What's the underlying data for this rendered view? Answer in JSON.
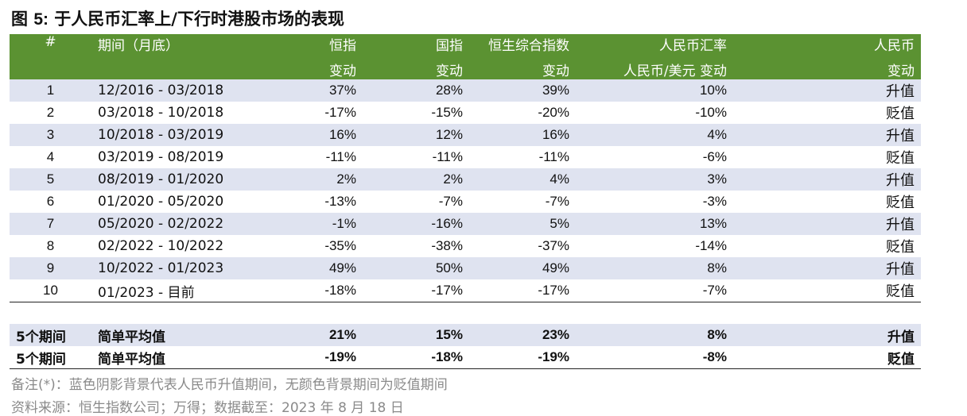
{
  "title": {
    "prefix": "图 ",
    "figno": "5:",
    "text": " 于人民币汇率上/下行时港股市场的表现"
  },
  "header": {
    "row1": [
      "#",
      "期间（月底）",
      "恒指",
      "国指",
      "恒生综合指数",
      "人民币汇率",
      "人民币"
    ],
    "row2": [
      "",
      "",
      "变动",
      "变动",
      "变动",
      "人民币/美元 变动",
      "变动"
    ]
  },
  "rows": [
    {
      "num": "1",
      "period": "12/2016 - 03/2018",
      "hsi": "37%",
      "hscei": "28%",
      "hsci": "39%",
      "fx": "10%",
      "dir": "升值"
    },
    {
      "num": "2",
      "period": "03/2018 - 10/2018",
      "hsi": "-17%",
      "hscei": "-15%",
      "hsci": "-20%",
      "fx": "-10%",
      "dir": "贬值"
    },
    {
      "num": "3",
      "period": "10/2018 - 03/2019",
      "hsi": "16%",
      "hscei": "12%",
      "hsci": "16%",
      "fx": "4%",
      "dir": "升值"
    },
    {
      "num": "4",
      "period": "03/2019 - 08/2019",
      "hsi": "-11%",
      "hscei": "-11%",
      "hsci": "-11%",
      "fx": "-6%",
      "dir": "贬值"
    },
    {
      "num": "5",
      "period": "08/2019 - 01/2020",
      "hsi": "2%",
      "hscei": "2%",
      "hsci": "4%",
      "fx": "3%",
      "dir": "升值"
    },
    {
      "num": "6",
      "period": "01/2020 - 05/2020",
      "hsi": "-13%",
      "hscei": "-7%",
      "hsci": "-7%",
      "fx": "-3%",
      "dir": "贬值"
    },
    {
      "num": "7",
      "period": "05/2020 - 02/2022",
      "hsi": "-1%",
      "hscei": "-16%",
      "hsci": "5%",
      "fx": "13%",
      "dir": "升值"
    },
    {
      "num": "8",
      "period": "02/2022 - 10/2022",
      "hsi": "-35%",
      "hscei": "-38%",
      "hsci": "-37%",
      "fx": "-14%",
      "dir": "贬值"
    },
    {
      "num": "9",
      "period": "10/2022 - 01/2023",
      "hsi": "49%",
      "hscei": "50%",
      "hsci": "49%",
      "fx": "8%",
      "dir": "升值"
    },
    {
      "num": "10",
      "period": "01/2023 - 目前",
      "hsi": "-18%",
      "hscei": "-17%",
      "hsci": "-17%",
      "fx": "-7%",
      "dir": "贬值"
    }
  ],
  "summary": [
    {
      "label": "5个期间",
      "method": "简单平均值",
      "hsi": "21%",
      "hscei": "15%",
      "hsci": "23%",
      "fx": "8%",
      "dir": "升值"
    },
    {
      "label": "5个期间",
      "method": "简单平均值",
      "hsi": "-19%",
      "hscei": "-18%",
      "hsci": "-19%",
      "fx": "-8%",
      "dir": "贬值"
    }
  ],
  "notes": {
    "note1": "备注(*)：蓝色阴影背景代表人民币升值期间，无颜色背景期间为贬值期间",
    "note2": "资料来源：恒生指数公司；万得；数据截至：2023 年 8 月 18 日"
  },
  "colors": {
    "header_bg": "#5b9232",
    "shade_bg": "#dfe3f0",
    "note_text": "#8a8a8a"
  }
}
